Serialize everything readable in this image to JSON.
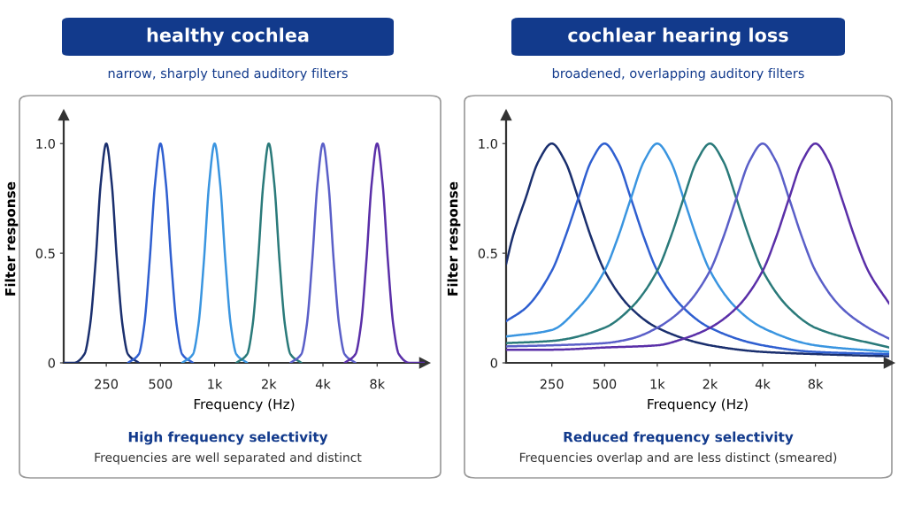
{
  "chart_data": [
    {
      "type": "line",
      "title": "healthy cochlea",
      "subtitle": "narrow, sharply tuned auditory filters",
      "xlabel": "Frequency (Hz)",
      "ylabel": "Filter response",
      "log": "x",
      "xlim": [
        145,
        14700
      ],
      "xticks": [
        {
          "value": 250,
          "label": "250"
        },
        {
          "value": 500,
          "label": "500"
        },
        {
          "value": 1000,
          "label": "1k"
        },
        {
          "value": 2000,
          "label": "2k"
        },
        {
          "value": 4000,
          "label": "4k"
        },
        {
          "value": 8000,
          "label": "8k"
        }
      ],
      "ylim": [
        0,
        1.13
      ],
      "yticks": [
        0,
        0.5,
        {
          "value": 1,
          "label": "1.0"
        }
      ],
      "annotations": [
        "High frequency selectivity",
        "Frequencies are well separated and distinct"
      ],
      "series": [
        {
          "color": "#1a2f6e",
          "x": [
            145,
            165,
            189,
            203,
            218,
            233,
            250,
            268,
            287,
            308,
            330,
            379
          ],
          "values": [
            0,
            0,
            0.04,
            0.17,
            0.46,
            0.82,
            1.0,
            0.82,
            0.46,
            0.17,
            0.04,
            0
          ]
        },
        {
          "color": "#2f5fd0",
          "x": [
            330,
            379,
            406,
            435,
            467,
            500,
            536,
            574,
            616,
            660,
            758
          ],
          "values": [
            0,
            0.04,
            0.17,
            0.46,
            0.82,
            1.0,
            0.82,
            0.46,
            0.17,
            0.04,
            0
          ]
        },
        {
          "color": "#3a95e0",
          "x": [
            660,
            758,
            812,
            871,
            933,
            1000,
            1072,
            1149,
            1231,
            1320,
            1516
          ],
          "values": [
            0,
            0.04,
            0.17,
            0.46,
            0.82,
            1.0,
            0.82,
            0.46,
            0.17,
            0.04,
            0
          ]
        },
        {
          "color": "#2a7a7a",
          "x": [
            1320,
            1516,
            1625,
            1741,
            1866,
            2000,
            2144,
            2297,
            2462,
            2639,
            3031
          ],
          "values": [
            0,
            0.04,
            0.17,
            0.46,
            0.82,
            1.0,
            0.82,
            0.46,
            0.17,
            0.04,
            0
          ]
        },
        {
          "color": "#5a5fc8",
          "x": [
            2639,
            3031,
            3249,
            3482,
            3732,
            4000,
            4287,
            4595,
            4925,
            5278,
            6063
          ],
          "values": [
            0,
            0.04,
            0.17,
            0.46,
            0.82,
            1.0,
            0.82,
            0.46,
            0.17,
            0.04,
            0
          ]
        },
        {
          "color": "#5a2fa8",
          "x": [
            5278,
            6063,
            6498,
            6964,
            7464,
            8000,
            8574,
            9190,
            9849,
            10556,
            12126,
            14700
          ],
          "values": [
            0,
            0.04,
            0.17,
            0.46,
            0.82,
            1.0,
            0.82,
            0.46,
            0.17,
            0.04,
            0,
            0
          ]
        }
      ]
    },
    {
      "type": "line",
      "title": "cochlear hearing loss",
      "subtitle": "broadened, overlapping auditory filters",
      "xlabel": "Frequency (Hz)",
      "ylabel": "Filter response",
      "log": "x",
      "xlim": [
        137,
        21100
      ],
      "xticks": [
        {
          "value": 250,
          "label": "250"
        },
        {
          "value": 500,
          "label": "500"
        },
        {
          "value": 1000,
          "label": "1k"
        },
        {
          "value": 2000,
          "label": "2k"
        },
        {
          "value": 4000,
          "label": "4k"
        },
        {
          "value": 8000,
          "label": "8k"
        }
      ],
      "ylim": [
        0,
        1.13
      ],
      "yticks": [
        0,
        0.5,
        {
          "value": 1,
          "label": "1.0"
        }
      ],
      "annotations": [
        "Reduced frequency selectivity",
        "Frequencies overlap and are less distinct (smeared)"
      ],
      "series": [
        {
          "color": "#1a2f6e",
          "x": [
            137,
            149,
            177,
            210,
            250,
            297,
            354,
            420,
            500,
            707,
            1000,
            2000,
            4000,
            8000,
            21100
          ],
          "values": [
            0.45,
            0.57,
            0.75,
            0.92,
            1.0,
            0.92,
            0.75,
            0.57,
            0.42,
            0.25,
            0.16,
            0.08,
            0.05,
            0.04,
            0.03
          ]
        },
        {
          "color": "#2f5fd0",
          "x": [
            137,
            177,
            250,
            297,
            354,
            420,
            500,
            595,
            707,
            841,
            1000,
            1414,
            2000,
            4000,
            8000,
            21100
          ],
          "values": [
            0.19,
            0.25,
            0.42,
            0.57,
            0.75,
            0.92,
            1.0,
            0.92,
            0.75,
            0.57,
            0.42,
            0.25,
            0.16,
            0.08,
            0.05,
            0.04
          ]
        },
        {
          "color": "#3a95e0",
          "x": [
            137,
            250,
            354,
            500,
            595,
            707,
            841,
            1000,
            1189,
            1414,
            1682,
            2000,
            2828,
            4000,
            8000,
            21100
          ],
          "values": [
            0.12,
            0.15,
            0.25,
            0.42,
            0.57,
            0.75,
            0.92,
            1.0,
            0.92,
            0.75,
            0.57,
            0.42,
            0.25,
            0.16,
            0.08,
            0.05
          ]
        },
        {
          "color": "#2a7a7a",
          "x": [
            137,
            250,
            500,
            707,
            1000,
            1189,
            1414,
            1682,
            2000,
            2378,
            2828,
            3364,
            4000,
            5657,
            8000,
            21100
          ],
          "values": [
            0.09,
            0.1,
            0.16,
            0.25,
            0.42,
            0.57,
            0.75,
            0.92,
            1.0,
            0.92,
            0.75,
            0.57,
            0.42,
            0.25,
            0.16,
            0.07
          ]
        },
        {
          "color": "#5a5fc8",
          "x": [
            137,
            250,
            500,
            707,
            1000,
            1414,
            2000,
            2378,
            2828,
            3364,
            4000,
            4757,
            5657,
            6727,
            8000,
            11314,
            16000,
            21100
          ],
          "values": [
            0.075,
            0.08,
            0.09,
            0.11,
            0.16,
            0.25,
            0.42,
            0.57,
            0.75,
            0.92,
            1.0,
            0.92,
            0.75,
            0.57,
            0.42,
            0.25,
            0.16,
            0.11
          ]
        },
        {
          "color": "#5a2fa8",
          "x": [
            137,
            250,
            500,
            1000,
            1414,
            2000,
            2828,
            4000,
            4757,
            5657,
            6727,
            8000,
            9514,
            11314,
            13454,
            16000,
            21100
          ],
          "values": [
            0.06,
            0.06,
            0.07,
            0.08,
            0.11,
            0.16,
            0.25,
            0.42,
            0.57,
            0.75,
            0.92,
            1.0,
            0.92,
            0.75,
            0.57,
            0.42,
            0.27
          ]
        }
      ]
    }
  ]
}
